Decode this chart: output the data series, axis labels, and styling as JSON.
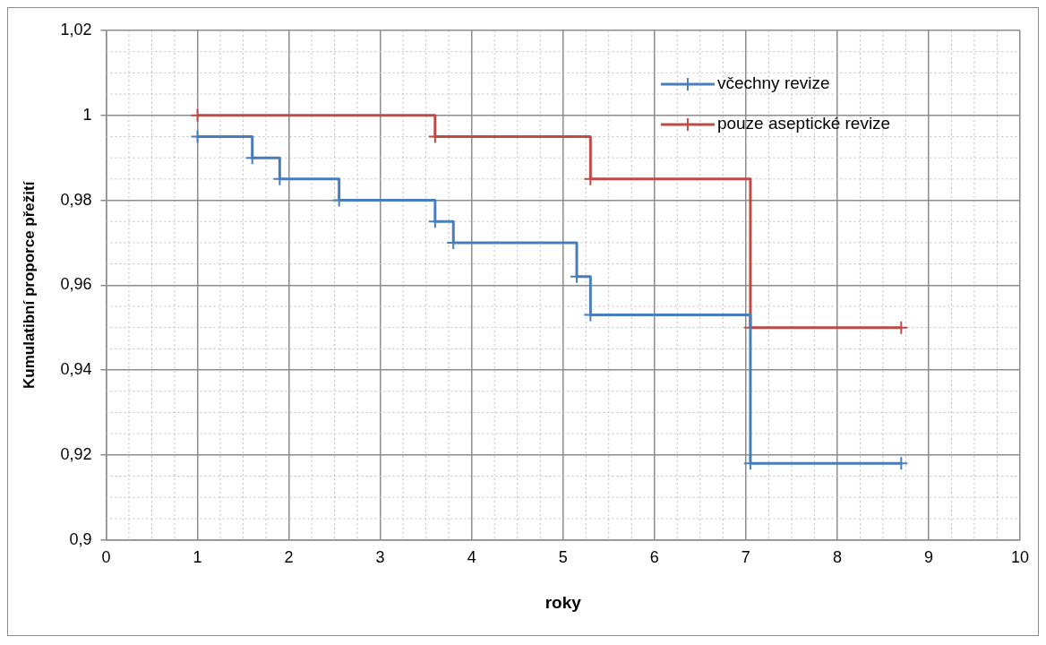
{
  "chart_data": {
    "type": "step",
    "xlabel": "roky",
    "ylabel": "Kumulatibní proporce přežití",
    "xlim": [
      0,
      10
    ],
    "xticks": [
      0,
      1,
      2,
      3,
      4,
      5,
      6,
      7,
      8,
      9,
      10
    ],
    "ylim": [
      0.9,
      1.02
    ],
    "yticks": [
      {
        "value": 0.9,
        "label": "0,9"
      },
      {
        "value": 0.92,
        "label": "0,92"
      },
      {
        "value": 0.94,
        "label": "0,94"
      },
      {
        "value": 0.96,
        "label": "0,96"
      },
      {
        "value": 0.98,
        "label": "0,98"
      },
      {
        "value": 1,
        "label": "1"
      },
      {
        "value": 1.02,
        "label": "1,02"
      }
    ],
    "grid": true,
    "legend": "top right",
    "marker": "cross",
    "line_style": "solid",
    "series": [
      {
        "name": "včechny revize",
        "color": "#4a7ebb",
        "x": [
          1,
          1.6,
          1.9,
          2.55,
          3.6,
          3.8,
          5.15,
          5.3,
          7.05,
          8.7
        ],
        "values": [
          0.995,
          0.99,
          0.985,
          0.98,
          0.975,
          0.97,
          0.962,
          0.953,
          0.918,
          0.918
        ]
      },
      {
        "name": "pouze aseptické revize",
        "color": "#be4b48",
        "x": [
          1,
          3.6,
          5.3,
          7.05,
          8.7
        ],
        "values": [
          1,
          0.995,
          0.985,
          0.95,
          0.95
        ]
      }
    ]
  }
}
